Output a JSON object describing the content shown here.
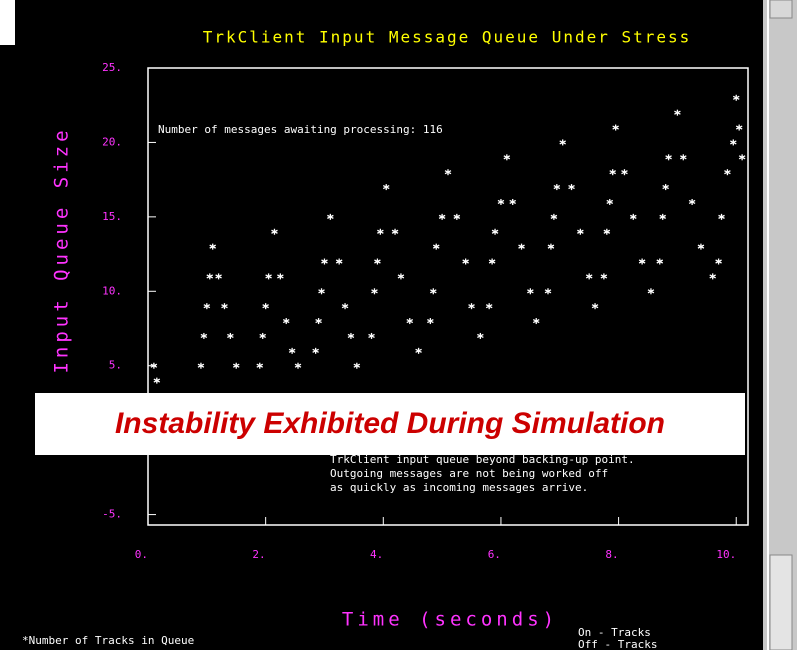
{
  "chart_data": {
    "type": "scatter",
    "title": "TrkClient Input Message Queue Under Stress",
    "ylabel": "Input Queue Size",
    "xlabel": "Time (seconds)",
    "annotation": "Number of messages awaiting processing: 116",
    "notes": [
      "TrkClient input queue beyond backing-up point.",
      "Outgoing messages are not being worked off",
      "as quickly as incoming messages arrive."
    ],
    "footer": "*Number of Tracks in Queue",
    "legend": [
      "On - Tracks",
      "Off - Tracks"
    ],
    "banner": "Instability Exhibited During Simulation",
    "color": "#ffffff",
    "xlim": [
      0,
      10.2
    ],
    "ylim": [
      -5.7,
      25
    ],
    "xticks": [
      {
        "value": 0,
        "label": "0."
      },
      {
        "value": 2,
        "label": "2."
      },
      {
        "value": 4,
        "label": "4."
      },
      {
        "value": 6,
        "label": "6."
      },
      {
        "value": 8,
        "label": "8."
      },
      {
        "value": 10,
        "label": "10."
      }
    ],
    "yticks": [
      {
        "value": 25,
        "label": "25."
      },
      {
        "value": 20,
        "label": "20."
      },
      {
        "value": 15,
        "label": "15."
      },
      {
        "value": 10,
        "label": "10."
      },
      {
        "value": 5,
        "label": "5."
      },
      {
        "value": -5,
        "label": "-5."
      }
    ],
    "x": [
      0.1,
      0.15,
      0.9,
      0.95,
      1.0,
      1.05,
      1.1,
      1.2,
      1.3,
      1.4,
      1.5,
      1.9,
      1.95,
      2.0,
      2.05,
      2.15,
      2.25,
      2.35,
      2.45,
      2.55,
      2.85,
      2.9,
      2.95,
      3.0,
      3.1,
      3.25,
      3.35,
      3.45,
      3.55,
      3.8,
      3.85,
      3.9,
      3.95,
      4.05,
      4.2,
      4.3,
      4.45,
      4.6,
      4.8,
      4.85,
      4.9,
      5.0,
      5.1,
      5.25,
      5.4,
      5.5,
      5.65,
      5.8,
      5.85,
      5.9,
      6.0,
      6.1,
      6.2,
      6.35,
      6.5,
      6.6,
      6.8,
      6.85,
      6.9,
      6.95,
      7.05,
      7.2,
      7.35,
      7.5,
      7.6,
      7.75,
      7.8,
      7.85,
      7.9,
      7.95,
      8.1,
      8.25,
      8.4,
      8.55,
      8.7,
      8.75,
      8.8,
      8.85,
      9.0,
      9.1,
      9.25,
      9.4,
      9.6,
      9.7,
      9.75,
      9.85,
      9.95,
      10.0,
      10.05,
      10.1
    ],
    "values": [
      5,
      4,
      5,
      7,
      9,
      11,
      13,
      11,
      9,
      7,
      5,
      5,
      7,
      9,
      11,
      14,
      11,
      8,
      6,
      5,
      6,
      8,
      10,
      12,
      15,
      12,
      9,
      7,
      5,
      7,
      10,
      12,
      14,
      17,
      14,
      11,
      8,
      6,
      8,
      10,
      13,
      15,
      18,
      15,
      12,
      9,
      7,
      9,
      12,
      14,
      16,
      19,
      16,
      13,
      10,
      8,
      10,
      13,
      15,
      17,
      20,
      17,
      14,
      11,
      9,
      11,
      14,
      16,
      18,
      21,
      18,
      15,
      12,
      10,
      12,
      15,
      17,
      19,
      22,
      19,
      16,
      13,
      11,
      12,
      15,
      18,
      20,
      23,
      21,
      19
    ]
  }
}
